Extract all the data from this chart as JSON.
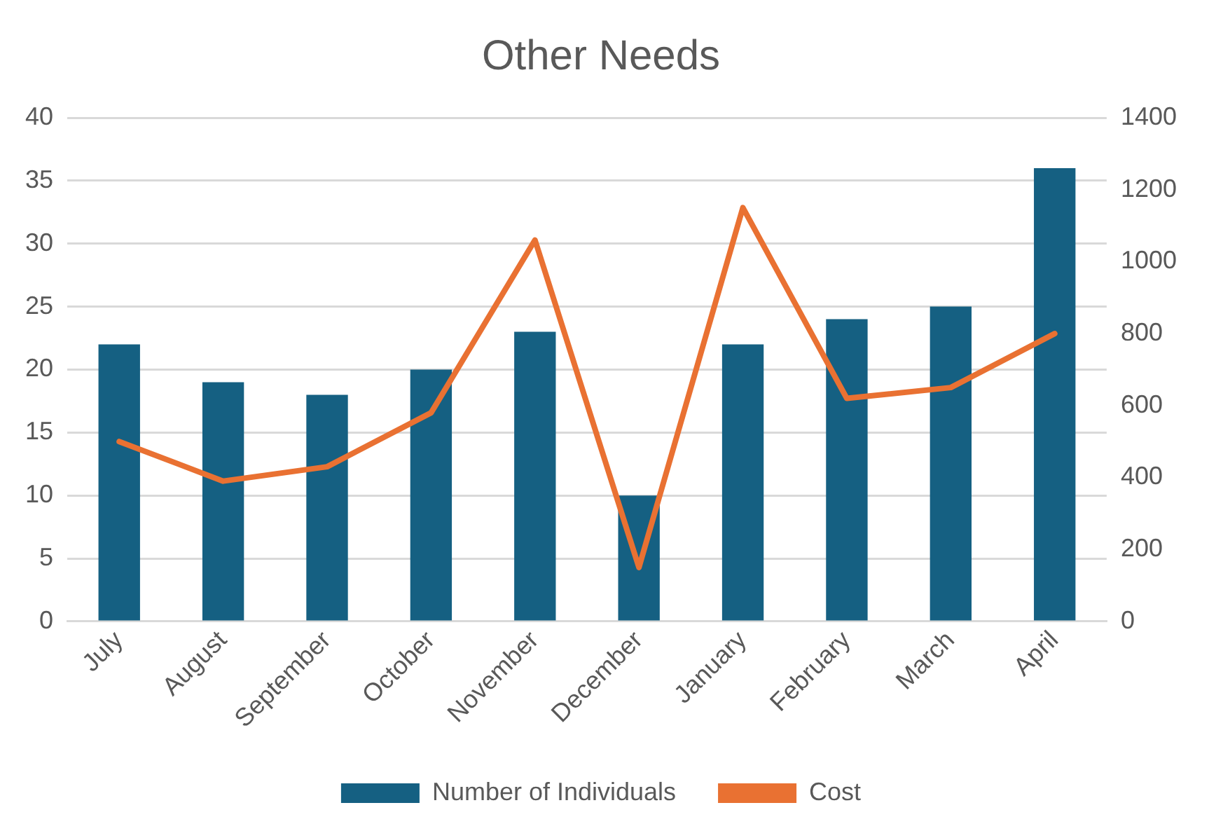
{
  "chart_data": {
    "type": "bar",
    "title": "Other Needs",
    "categories": [
      "July",
      "August",
      "September",
      "October",
      "November",
      "December",
      "January",
      "February",
      "March",
      "April"
    ],
    "series": [
      {
        "name": "Number of Individuals",
        "color": "#156082",
        "values": [
          22,
          19,
          18,
          20,
          23,
          10,
          22,
          24,
          25,
          36
        ]
      },
      {
        "name": "Cost",
        "type": "line",
        "axis": "y2",
        "color": "#e97132",
        "values": [
          500,
          390,
          430,
          580,
          1060,
          150,
          1150,
          620,
          650,
          800
        ]
      }
    ],
    "ylim": [
      0,
      40
    ],
    "yticks": [
      0,
      5,
      10,
      15,
      20,
      25,
      30,
      35,
      40
    ],
    "y2lim": [
      0,
      1400
    ],
    "y2ticks": [
      0,
      200,
      400,
      600,
      800,
      1000,
      1200,
      1400
    ],
    "grid": "y",
    "legend": "bottom",
    "marker": "none",
    "line_style": "solid"
  }
}
